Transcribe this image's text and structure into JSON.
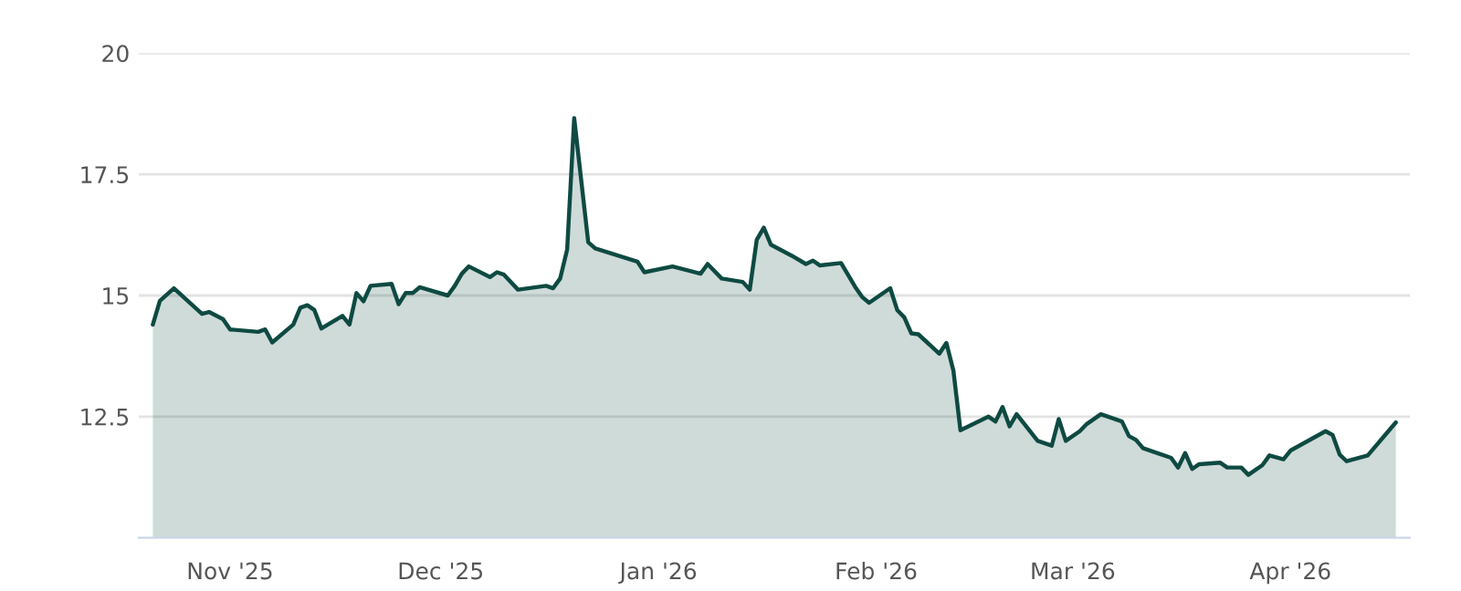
{
  "chart_data": {
    "type": "area",
    "x": [
      "2025-10-21",
      "2025-10-22",
      "2025-10-24",
      "2025-10-28",
      "2025-10-29",
      "2025-10-31",
      "2025-11-01",
      "2025-11-05",
      "2025-11-06",
      "2025-11-07",
      "2025-11-10",
      "2025-11-11",
      "2025-11-12",
      "2025-11-13",
      "2025-11-14",
      "2025-11-17",
      "2025-11-18",
      "2025-11-19",
      "2025-11-20",
      "2025-11-21",
      "2025-11-24",
      "2025-11-25",
      "2025-11-26",
      "2025-11-27",
      "2025-11-28",
      "2025-12-02",
      "2025-12-03",
      "2025-12-04",
      "2025-12-05",
      "2025-12-08",
      "2025-12-09",
      "2025-12-10",
      "2025-12-12",
      "2025-12-16",
      "2025-12-17",
      "2025-12-18",
      "2025-12-19",
      "2025-12-20",
      "2025-12-22",
      "2025-12-23",
      "2025-12-29",
      "2025-12-30",
      "2026-01-03",
      "2026-01-07",
      "2026-01-08",
      "2026-01-10",
      "2026-01-13",
      "2026-01-14",
      "2026-01-15",
      "2026-01-16",
      "2026-01-17",
      "2026-01-20",
      "2026-01-22",
      "2026-01-23",
      "2026-01-24",
      "2026-01-27",
      "2026-01-29",
      "2026-01-30",
      "2026-01-31",
      "2026-02-03",
      "2026-02-04",
      "2026-02-05",
      "2026-02-06",
      "2026-02-07",
      "2026-02-10",
      "2026-02-11",
      "2026-02-12",
      "2026-02-13",
      "2026-02-17",
      "2026-02-18",
      "2026-02-19",
      "2026-02-20",
      "2026-02-21",
      "2026-02-24",
      "2026-02-26",
      "2026-02-27",
      "2026-02-28",
      "2026-03-02",
      "2026-03-03",
      "2026-03-05",
      "2026-03-08",
      "2026-03-09",
      "2026-03-10",
      "2026-03-11",
      "2026-03-15",
      "2026-03-16",
      "2026-03-17",
      "2026-03-18",
      "2026-03-19",
      "2026-03-22",
      "2026-03-23",
      "2026-03-25",
      "2026-03-26",
      "2026-03-28",
      "2026-03-29",
      "2026-03-31",
      "2026-04-01",
      "2026-04-06",
      "2026-04-07",
      "2026-04-08",
      "2026-04-09",
      "2026-04-12",
      "2026-04-16"
    ],
    "series": [
      {
        "color": "#0e4a42",
        "values": [
          14.4,
          14.89,
          15.15,
          14.62,
          14.66,
          14.51,
          14.3,
          14.25,
          14.3,
          14.03,
          14.4,
          14.75,
          14.8,
          14.7,
          14.32,
          14.58,
          14.4,
          15.05,
          14.88,
          15.2,
          15.24,
          14.82,
          15.05,
          15.05,
          15.17,
          15.0,
          15.2,
          15.45,
          15.6,
          15.38,
          15.48,
          15.43,
          15.12,
          15.2,
          15.15,
          15.35,
          15.95,
          18.66,
          16.1,
          15.97,
          15.7,
          15.48,
          15.6,
          15.45,
          15.65,
          15.35,
          15.28,
          15.12,
          16.15,
          16.4,
          16.05,
          15.82,
          15.65,
          15.72,
          15.62,
          15.67,
          15.18,
          14.97,
          14.85,
          15.15,
          14.7,
          14.55,
          14.22,
          14.2,
          13.8,
          14.02,
          13.45,
          12.22,
          12.5,
          12.4,
          12.7,
          12.3,
          12.55,
          12.0,
          11.9,
          12.45,
          12.0,
          12.2,
          12.35,
          12.55,
          12.4,
          12.1,
          12.02,
          11.85,
          11.65,
          11.45,
          11.75,
          11.42,
          11.52,
          11.55,
          11.45,
          11.45,
          11.3,
          11.5,
          11.7,
          11.62,
          11.8,
          12.2,
          12.12,
          11.72,
          11.58,
          11.7,
          12.38
        ]
      }
    ],
    "xlim": [
      "2025-10-19",
      "2026-04-18"
    ],
    "xticks": [
      {
        "value": "2025-11-01",
        "label": "Nov '25"
      },
      {
        "value": "2025-12-01",
        "label": "Dec '25"
      },
      {
        "value": "2026-01-01",
        "label": "Jan '26"
      },
      {
        "value": "2026-02-01",
        "label": "Feb '26"
      },
      {
        "value": "2026-03-01",
        "label": "Mar '26"
      },
      {
        "value": "2026-04-01",
        "label": "Apr '26"
      }
    ],
    "ylim": [
      10,
      20
    ],
    "yticks": [
      12.5,
      15,
      17.5,
      20
    ],
    "grid": "y"
  }
}
